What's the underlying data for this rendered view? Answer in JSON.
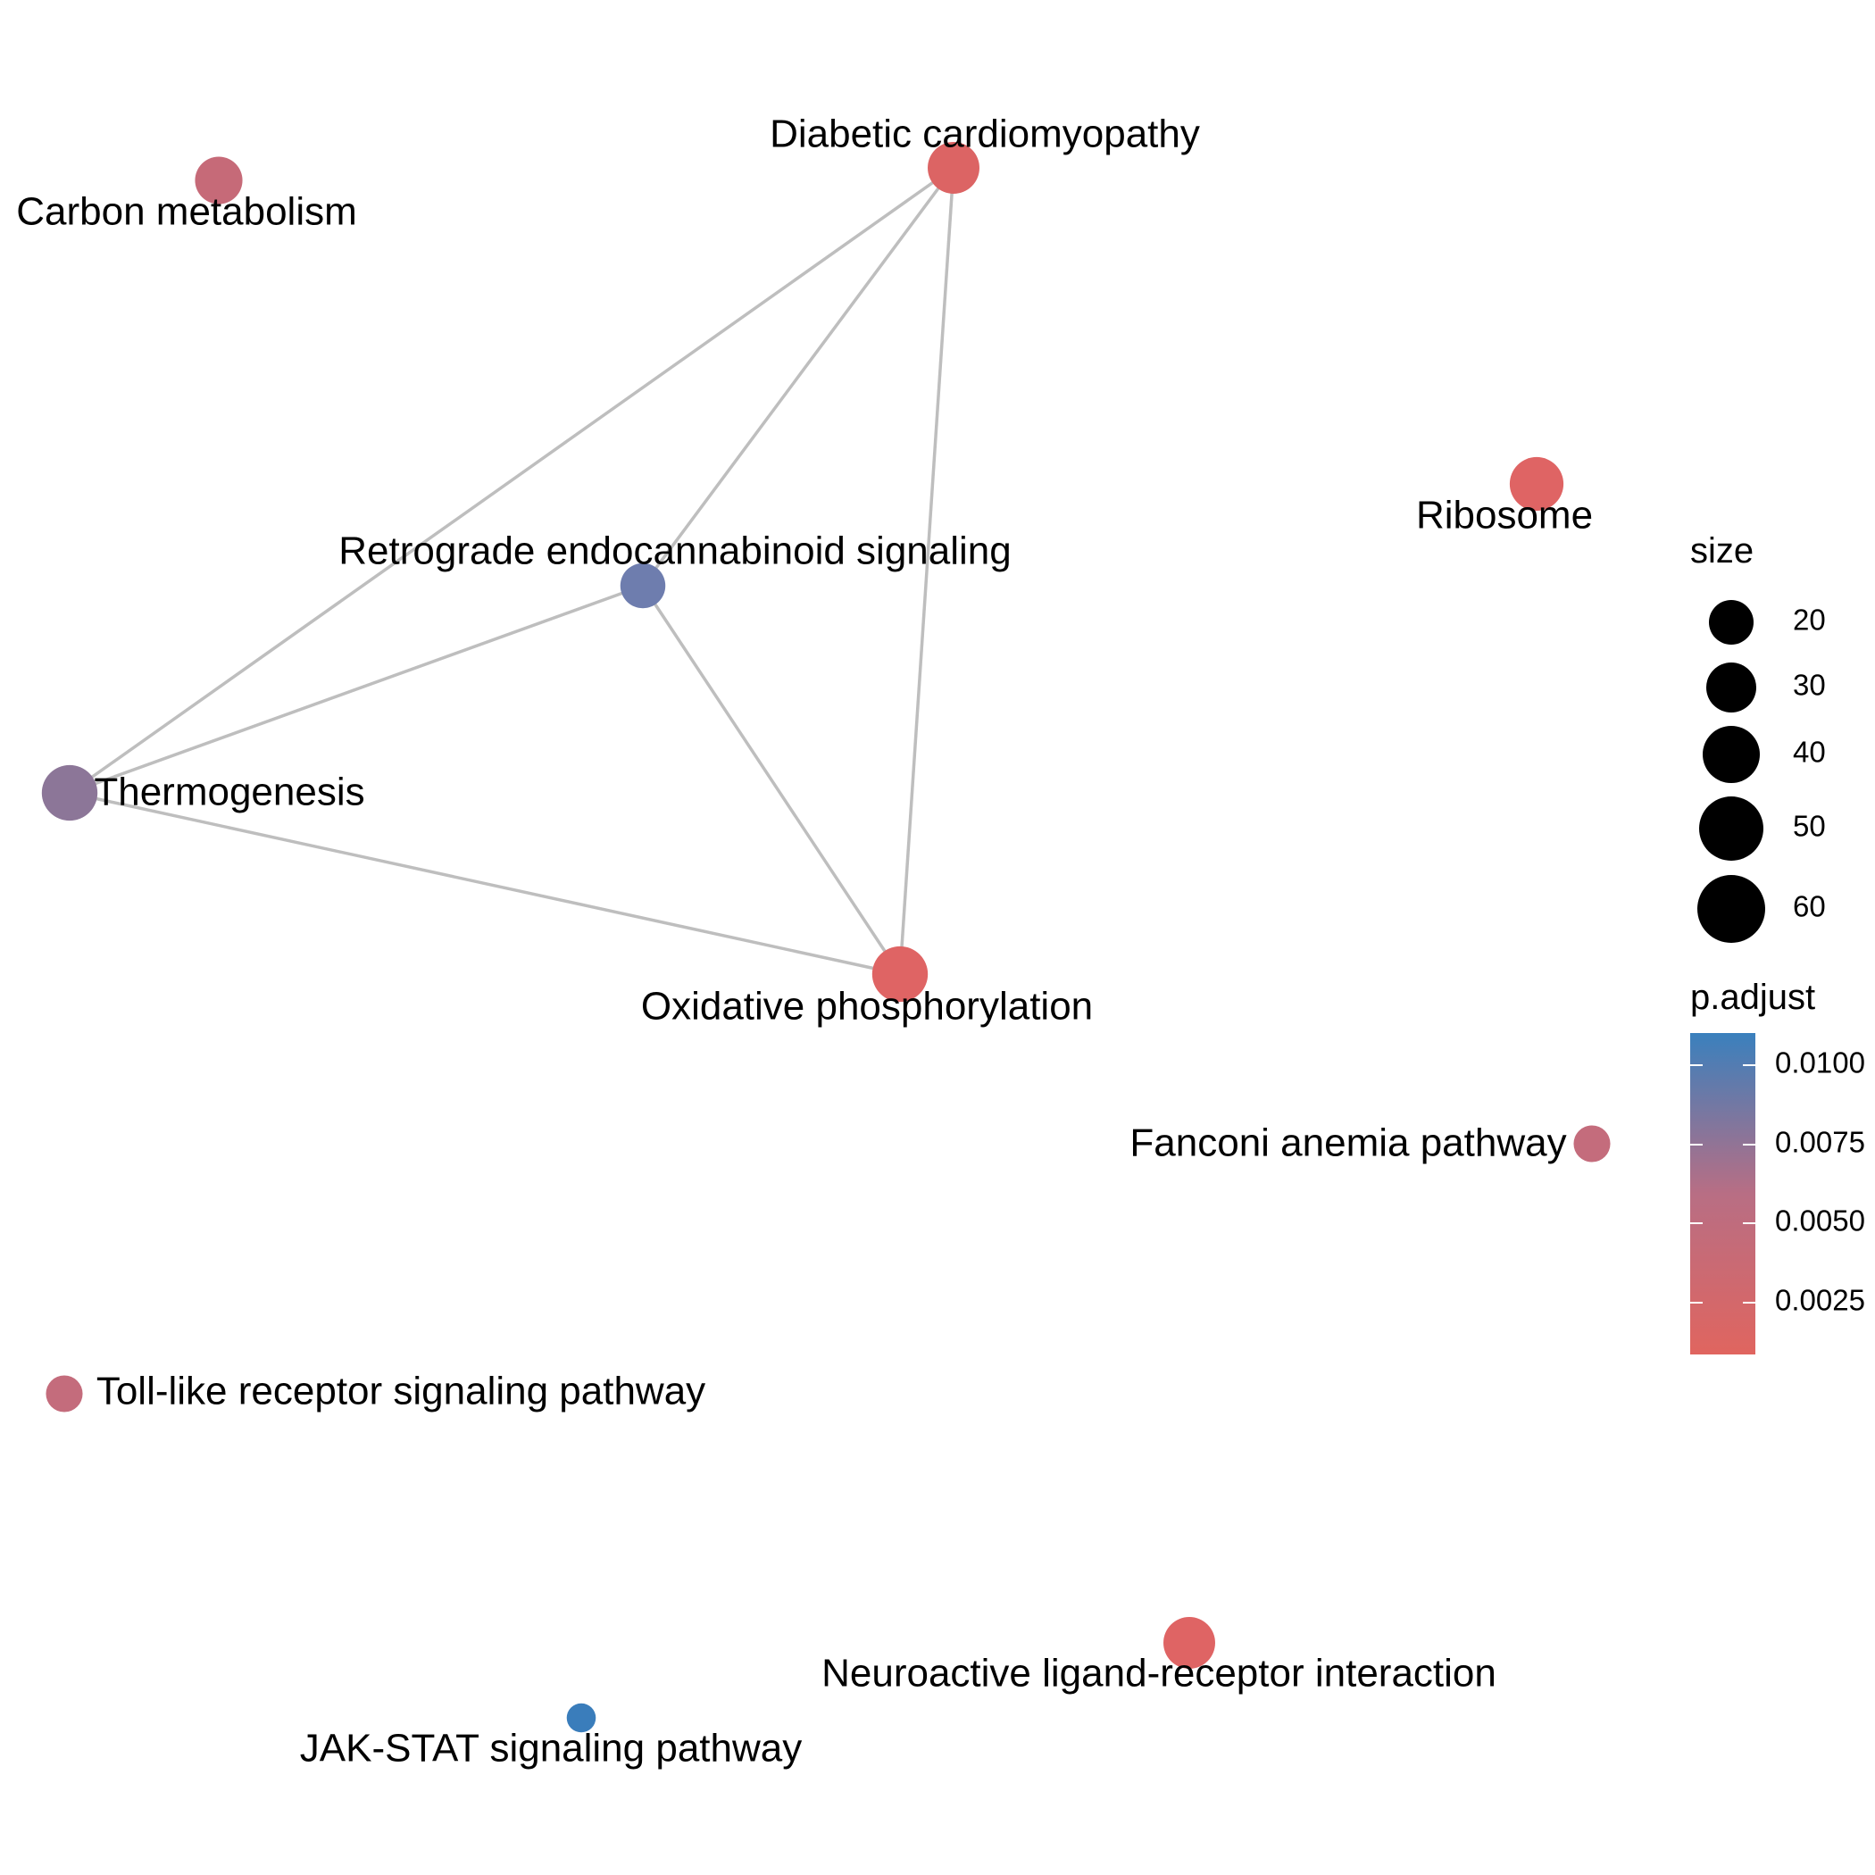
{
  "nodes": [
    {
      "id": "diabetic",
      "label": "Diabetic cardiomyopathy",
      "size": 50,
      "color": "#DC6464"
    },
    {
      "id": "carbon",
      "label": "Carbon metabolism",
      "size": 40,
      "color": "#C66A78"
    },
    {
      "id": "ribosome",
      "label": "Ribosome",
      "size": 55,
      "color": "#DF6464"
    },
    {
      "id": "retrograde",
      "label": "Retrograde endocannabinoid signaling",
      "size": 35,
      "color": "#6E7DAE"
    },
    {
      "id": "thermogenesis",
      "label": "Thermogenesis",
      "size": 60,
      "color": "#8C7698"
    },
    {
      "id": "oxphos",
      "label": "Oxidative phosphorylation",
      "size": 60,
      "color": "#DF6464"
    },
    {
      "id": "fanconi",
      "label": "Fanconi anemia pathway",
      "size": 20,
      "color": "#C46C7C"
    },
    {
      "id": "toll",
      "label": "Toll-like receptor signaling pathway",
      "size": 20,
      "color": "#C46C7C"
    },
    {
      "id": "neuroactive",
      "label": "Neuroactive ligand-receptor interaction",
      "size": 50,
      "color": "#DF6464"
    },
    {
      "id": "jakstat",
      "label": "JAK-STAT signaling pathway",
      "size": 10,
      "color": "#3A7DBB"
    }
  ],
  "edges": [
    [
      "diabetic",
      "retrograde"
    ],
    [
      "diabetic",
      "thermogenesis"
    ],
    [
      "diabetic",
      "oxphos"
    ],
    [
      "retrograde",
      "thermogenesis"
    ],
    [
      "retrograde",
      "oxphos"
    ],
    [
      "thermogenesis",
      "oxphos"
    ]
  ],
  "legend": {
    "size": {
      "title": "size",
      "entries": [
        "20",
        "30",
        "40",
        "50",
        "60"
      ]
    },
    "color": {
      "title": "p.adjust",
      "ticks": [
        "0.0100",
        "0.0075",
        "0.0050",
        "0.0025"
      ],
      "low_color": "#E0655F",
      "high_color": "#3A80BD"
    }
  },
  "colors": {
    "edge": "#BEBEBE"
  }
}
